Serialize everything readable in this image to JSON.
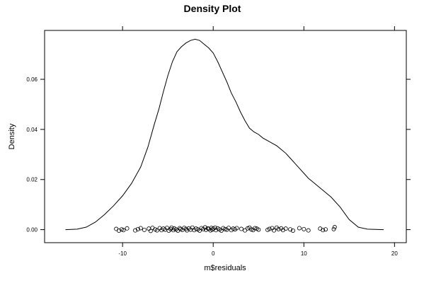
{
  "chart_data": {
    "type": "line",
    "title": "Density Plot",
    "xlabel": "m$residuals",
    "ylabel": "Density",
    "xlim": [
      -18.6,
      21.3
    ],
    "ylim": [
      -0.0052,
      0.0795
    ],
    "grid": false,
    "x_ticks": [
      -10,
      0,
      10,
      20
    ],
    "x_tick_labels": [
      "-10",
      "0",
      "10",
      "20"
    ],
    "y_ticks": [
      0.0,
      0.02,
      0.04,
      0.06
    ],
    "y_tick_labels": [
      "0.00",
      "0.02",
      "0.04",
      "0.06"
    ],
    "series": [
      {
        "x": [
          -16.3,
          -15,
          -14,
          -13,
          -12,
          -11,
          -10,
          -9,
          -8,
          -7.2,
          -6.5,
          -6,
          -5.5,
          -5,
          -4.5,
          -4,
          -3.5,
          -3,
          -2.5,
          -2,
          -1.5,
          -1,
          -0.5,
          0,
          0.5,
          1,
          1.5,
          2,
          2.5,
          3,
          3.5,
          4,
          4.5,
          5,
          5.5,
          6,
          6.5,
          7,
          7.5,
          8,
          8.5,
          9,
          9.5,
          10,
          10.5,
          11,
          12,
          13,
          14,
          15,
          16,
          17,
          18.8
        ],
        "y": [
          0.0,
          0.0002,
          0.001,
          0.003,
          0.006,
          0.0095,
          0.0135,
          0.0185,
          0.025,
          0.033,
          0.042,
          0.048,
          0.055,
          0.0615,
          0.067,
          0.071,
          0.073,
          0.0745,
          0.0755,
          0.076,
          0.0755,
          0.074,
          0.0725,
          0.0705,
          0.067,
          0.063,
          0.059,
          0.0545,
          0.051,
          0.047,
          0.0435,
          0.0405,
          0.039,
          0.038,
          0.0365,
          0.0355,
          0.0345,
          0.0335,
          0.032,
          0.0305,
          0.0285,
          0.0265,
          0.0245,
          0.0225,
          0.0205,
          0.019,
          0.016,
          0.013,
          0.009,
          0.004,
          0.001,
          0.0002,
          0.0
        ]
      }
    ],
    "rug": [
      -10.7,
      -10.4,
      -10.1,
      -9.9,
      -9.5,
      -8.6,
      -8.3,
      -8.0,
      -7.6,
      -7.1,
      -6.9,
      -6.7,
      -6.4,
      -6.2,
      -5.9,
      -5.7,
      -5.5,
      -5.3,
      -5.1,
      -4.9,
      -4.7,
      -4.6,
      -4.4,
      -4.3,
      -4.1,
      -3.9,
      -3.7,
      -3.6,
      -3.4,
      -3.2,
      -3.0,
      -2.9,
      -2.7,
      -2.5,
      -2.3,
      -2.1,
      -1.9,
      -1.7,
      -1.5,
      -1.3,
      -1.1,
      -0.9,
      -0.8,
      -0.6,
      -0.5,
      -0.3,
      -0.2,
      -0.1,
      0.0,
      0.2,
      0.3,
      0.5,
      0.7,
      0.9,
      1.1,
      1.3,
      1.5,
      1.7,
      2.0,
      2.2,
      2.4,
      2.6,
      3.1,
      3.5,
      3.8,
      4.0,
      4.2,
      4.4,
      4.6,
      4.8,
      5.0,
      6.0,
      6.2,
      6.5,
      6.7,
      7.0,
      7.2,
      7.5,
      7.7,
      8.0,
      8.5,
      8.8,
      9.5,
      10.0,
      10.5,
      11.8,
      12.1,
      12.4,
      13.3,
      13.4
    ],
    "rug_y": [
      0.0003,
      -0.0004,
      0.0001,
      -0.0002,
      0.0005,
      -0.0003,
      0.0002,
      0.0006,
      -0.0001,
      0.0004,
      -0.0005,
      0.0007,
      0.0001,
      -0.0003,
      0.0006,
      -0.0002,
      0.0004,
      0.0,
      0.0007,
      -0.0004,
      0.0002,
      0.0008,
      -0.0002,
      0.0005,
      0.0001,
      -0.0004,
      0.0006,
      0.0002,
      -0.0001,
      0.0007,
      0.0003,
      -0.0003,
      0.0005,
      0.0,
      0.0008,
      -0.0002,
      0.0004,
      0.0001,
      -0.0004,
      0.0006,
      0.0002,
      0.0009,
      -0.0001,
      0.0005,
      0.0003,
      -0.0003,
      0.0007,
      0.0,
      0.0004,
      0.0008,
      -0.0002,
      0.0005,
      0.0001,
      -0.0004,
      0.0006,
      0.0002,
      0.0,
      0.0007,
      -0.0002,
      0.0004,
      0.0001,
      0.0006,
      0.0003,
      -0.0003,
      0.0005,
      0.0008,
      0.0001,
      -0.0002,
      0.0006,
      0.0004,
      0.0,
      -0.0001,
      0.0003,
      0.0006,
      -0.0003,
      0.0008,
      0.0002,
      0.0005,
      -0.0002,
      0.0004,
      0.0001,
      -0.0004,
      0.0006,
      0.0002,
      -0.0003,
      0.0004,
      -0.0002,
      0.0001,
      0.0002,
      0.001
    ]
  }
}
